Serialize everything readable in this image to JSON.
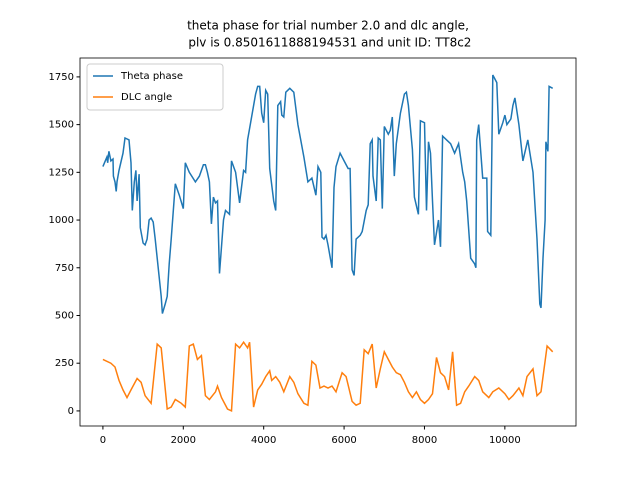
{
  "chart_data": {
    "type": "line",
    "title": [
      "theta phase for trial number 2.0 and dlc angle,",
      " plv is 0.8501611888194531 and unit ID: TT8c2"
    ],
    "xlim": [
      -570,
      11770
    ],
    "xticks": [
      0,
      2000,
      4000,
      6000,
      8000,
      10000
    ],
    "ylim": [
      -79,
      1849
    ],
    "yticks": [
      0,
      250,
      500,
      750,
      1000,
      1250,
      1500,
      1750
    ],
    "legend": "upper left",
    "series": [
      {
        "name": "Theta phase",
        "color": "#1f77b4",
        "x": [
          0,
          100,
          120,
          150,
          200,
          250,
          260,
          300,
          330,
          350,
          400,
          500,
          550,
          650,
          700,
          730,
          780,
          820,
          850,
          900,
          930,
          1000,
          1050,
          1100,
          1150,
          1200,
          1250,
          1300,
          1400,
          1450,
          1480,
          1550,
          1600,
          1650,
          1700,
          1800,
          1900,
          2000,
          2050,
          2150,
          2300,
          2400,
          2500,
          2550,
          2600,
          2650,
          2700,
          2750,
          2800,
          2850,
          2900,
          3000,
          3050,
          3150,
          3200,
          3300,
          3400,
          3500,
          3550,
          3600,
          3700,
          3800,
          3850,
          3900,
          3950,
          4000,
          4050,
          4100,
          4150,
          4250,
          4300,
          4350,
          4420,
          4450,
          4500,
          4550,
          4650,
          4750,
          4850,
          5000,
          5100,
          5200,
          5300,
          5350,
          5420,
          5450,
          5500,
          5550,
          5600,
          5700,
          5750,
          5800,
          5900,
          6000,
          6100,
          6150,
          6200,
          6250,
          6300,
          6400,
          6450,
          6550,
          6600,
          6650,
          6700,
          6720,
          6800,
          6850,
          6900,
          6950,
          7000,
          7100,
          7150,
          7200,
          7250,
          7300,
          7400,
          7500,
          7550,
          7600,
          7700,
          7750,
          7850,
          7900,
          8000,
          8050,
          8100,
          8150,
          8200,
          8250,
          8350,
          8400,
          8450,
          8550,
          8650,
          8750,
          8850,
          8950,
          9000,
          9050,
          9150,
          9250,
          9280,
          9300,
          9350,
          9450,
          9550,
          9570,
          9650,
          9700,
          9800,
          9850,
          9950,
          10000,
          10050,
          10150,
          10200,
          10250,
          10350,
          10450,
          10570,
          10700,
          10800,
          10870,
          10900,
          10950,
          11000,
          11020,
          11070,
          11100,
          11190
        ],
        "values": [
          1280,
          1330,
          1300,
          1360,
          1310,
          1320,
          1230,
          1200,
          1150,
          1200,
          1260,
          1350,
          1430,
          1420,
          1300,
          1050,
          1200,
          1260,
          1100,
          1240,
          960,
          880,
          870,
          900,
          1000,
          1010,
          990,
          900,
          700,
          600,
          510,
          560,
          600,
          770,
          900,
          1190,
          1130,
          1060,
          1300,
          1250,
          1200,
          1230,
          1290,
          1290,
          1250,
          1200,
          980,
          1120,
          1090,
          1100,
          720,
          1000,
          1050,
          1030,
          1310,
          1250,
          1090,
          1260,
          1250,
          1420,
          1540,
          1660,
          1700,
          1700,
          1560,
          1510,
          1680,
          1660,
          1270,
          1100,
          1050,
          1600,
          1620,
          1550,
          1540,
          1670,
          1690,
          1670,
          1500,
          1330,
          1200,
          1220,
          1130,
          1280,
          1250,
          910,
          900,
          920,
          870,
          750,
          1170,
          1280,
          1350,
          1310,
          1270,
          1270,
          740,
          710,
          900,
          920,
          940,
          1050,
          1080,
          1400,
          1420,
          1230,
          1100,
          1430,
          1420,
          1060,
          1490,
          1450,
          1470,
          1540,
          1230,
          1400,
          1560,
          1660,
          1670,
          1600,
          1370,
          1120,
          1030,
          1520,
          1510,
          1050,
          1410,
          1350,
          1100,
          870,
          1000,
          860,
          1440,
          1420,
          1400,
          1350,
          1400,
          1250,
          1200,
          1100,
          800,
          770,
          750,
          1420,
          1500,
          1220,
          1220,
          940,
          920,
          1760,
          1720,
          1450,
          1510,
          1550,
          1500,
          1530,
          1600,
          1640,
          1500,
          1310,
          1420,
          1250,
          900,
          560,
          540,
          800,
          1000,
          1410,
          1360,
          1700,
          1690
        ]
      },
      {
        "name": "DLC angle",
        "color": "#ff7f0e",
        "x": [
          0,
          200,
          300,
          400,
          500,
          600,
          700,
          850,
          950,
          1050,
          1200,
          1350,
          1450,
          1600,
          1700,
          1800,
          1950,
          2050,
          2150,
          2250,
          2350,
          2450,
          2550,
          2650,
          2800,
          2850,
          2950,
          3100,
          3200,
          3300,
          3400,
          3500,
          3600,
          3650,
          3750,
          3850,
          3950,
          4050,
          4150,
          4200,
          4300,
          4400,
          4500,
          4650,
          4750,
          4850,
          5000,
          5100,
          5200,
          5300,
          5400,
          5500,
          5600,
          5700,
          5800,
          5950,
          6050,
          6200,
          6300,
          6400,
          6500,
          6600,
          6700,
          6800,
          6900,
          7000,
          7100,
          7200,
          7300,
          7400,
          7500,
          7600,
          7700,
          7800,
          7900,
          8000,
          8100,
          8200,
          8300,
          8400,
          8500,
          8600,
          8700,
          8800,
          8900,
          9000,
          9100,
          9250,
          9350,
          9450,
          9600,
          9700,
          9850,
          10000,
          10100,
          10200,
          10350,
          10450,
          10550,
          10700,
          10800,
          10900,
          11050,
          11190
        ],
        "values": [
          270,
          250,
          230,
          160,
          110,
          70,
          110,
          170,
          150,
          80,
          40,
          350,
          330,
          10,
          20,
          60,
          40,
          20,
          340,
          350,
          270,
          290,
          80,
          60,
          100,
          130,
          70,
          10,
          0,
          350,
          330,
          360,
          330,
          360,
          20,
          110,
          140,
          180,
          210,
          160,
          180,
          150,
          100,
          180,
          150,
          90,
          40,
          30,
          260,
          240,
          120,
          130,
          120,
          130,
          100,
          200,
          180,
          50,
          30,
          40,
          320,
          300,
          350,
          120,
          220,
          310,
          270,
          230,
          200,
          190,
          150,
          100,
          70,
          100,
          60,
          40,
          60,
          90,
          280,
          200,
          180,
          110,
          310,
          30,
          40,
          100,
          130,
          180,
          160,
          100,
          70,
          100,
          120,
          90,
          60,
          80,
          120,
          80,
          180,
          220,
          80,
          100,
          340,
          310
        ]
      }
    ]
  }
}
